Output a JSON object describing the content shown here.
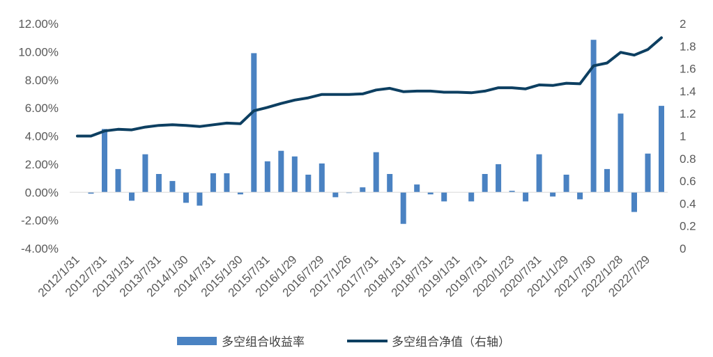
{
  "chart_data": {
    "type": "bar+line",
    "title": "",
    "xlabel": "",
    "ylabel": "",
    "ylim": [
      -4,
      12
    ],
    "y2lim": [
      0,
      2
    ],
    "y_tick_labels": [
      "12.00%",
      "10.00%",
      "8.00%",
      "6.00%",
      "4.00%",
      "2.00%",
      "0.00%",
      "-2.00%",
      "-4.00%"
    ],
    "y2_tick_labels": [
      "2",
      "1.8",
      "1.6",
      "1.4",
      "1.2",
      "1",
      "0.8",
      "0.6",
      "0.4",
      "0.2",
      "0"
    ],
    "x_tick_labels": [
      "2012/1/31",
      "2012/7/31",
      "2013/1/31",
      "2013/7/31",
      "2014/1/30",
      "2014/7/31",
      "2015/1/30",
      "2015/7/31",
      "2016/1/29",
      "2016/7/29",
      "2017/1/26",
      "2017/7/31",
      "2018/1/31",
      "2018/7/31",
      "2019/1/31",
      "2019/7/31",
      "2020/1/23",
      "2020/7/31",
      "2021/1/29",
      "2021/7/30",
      "2022/1/28",
      "2022/7/29"
    ],
    "grid": false,
    "legend_position": "bottom",
    "series": [
      {
        "name": "多空组合收益率",
        "type": "bar",
        "axis": "left",
        "color": "#4a82c2",
        "values": [
          0.0,
          -0.1,
          4.5,
          1.65,
          -0.6,
          2.7,
          1.3,
          0.8,
          -0.75,
          -0.95,
          1.35,
          1.35,
          -0.15,
          9.9,
          2.2,
          2.95,
          2.55,
          1.25,
          2.05,
          -0.35,
          -0.05,
          0.35,
          2.85,
          1.3,
          -2.25,
          0.55,
          -0.15,
          -0.65,
          0.0,
          -0.65,
          1.3,
          2.0,
          0.1,
          -0.65,
          2.7,
          -0.3,
          1.25,
          -0.5,
          10.85,
          1.65,
          5.6,
          -1.4,
          2.75,
          6.15
        ]
      },
      {
        "name": "多空组合净值（右轴）",
        "type": "line",
        "axis": "right",
        "color": "#0d3f61",
        "values": [
          1.0,
          1.0,
          1.045,
          1.06,
          1.055,
          1.08,
          1.095,
          1.1,
          1.095,
          1.085,
          1.1,
          1.115,
          1.11,
          1.225,
          1.255,
          1.29,
          1.32,
          1.34,
          1.37,
          1.37,
          1.37,
          1.375,
          1.41,
          1.425,
          1.395,
          1.4,
          1.4,
          1.39,
          1.39,
          1.385,
          1.4,
          1.43,
          1.43,
          1.42,
          1.455,
          1.45,
          1.47,
          1.465,
          1.625,
          1.65,
          1.745,
          1.72,
          1.77,
          1.875
        ]
      }
    ]
  }
}
